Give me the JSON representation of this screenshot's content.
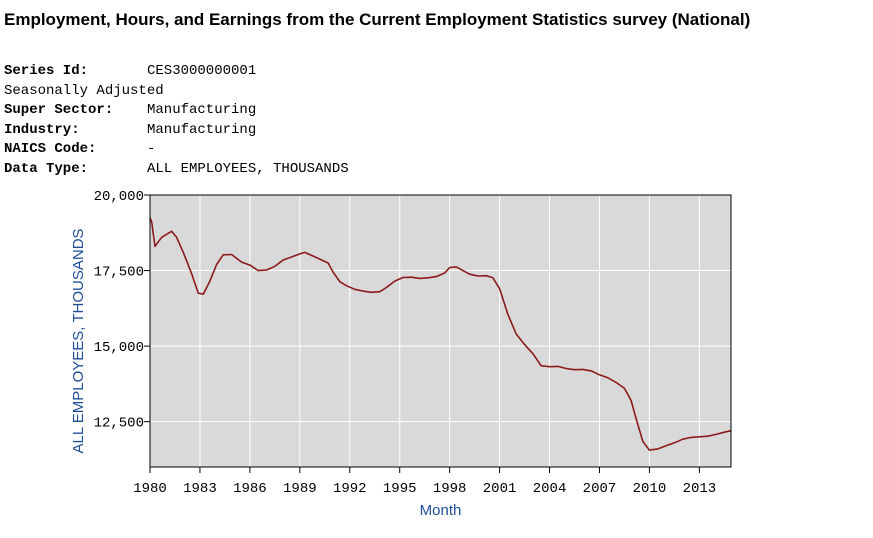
{
  "title": "Employment, Hours, and Earnings from the Current Employment Statistics survey (National)",
  "series_info": [
    {
      "label": "Series Id:",
      "value": "CES3000000001"
    },
    {
      "label": "Seasonally Adjusted",
      "value": ""
    },
    {
      "label": "Super Sector:",
      "value": "Manufacturing"
    },
    {
      "label": "Industry:",
      "value": "Manufacturing"
    },
    {
      "label": "NAICS Code:",
      "value": "-"
    },
    {
      "label": "Data Type:",
      "value": "ALL EMPLOYEES, THOUSANDS"
    }
  ],
  "chart_data": {
    "type": "line",
    "xlabel": "Month",
    "ylabel": "ALL EMPLOYEES, THOUSANDS",
    "xlim": [
      1980,
      2014.9
    ],
    "ylim": [
      11000,
      20000
    ],
    "x_ticks": [
      1980,
      1983,
      1986,
      1989,
      1992,
      1995,
      1998,
      2001,
      2004,
      2007,
      2010,
      2013
    ],
    "y_ticks": [
      12500,
      15000,
      17500,
      20000
    ],
    "y_tick_labels": [
      "12,500",
      "15,000",
      "17,500",
      "20,000"
    ],
    "grid": true,
    "plot_background": "#d9d9d9",
    "line_color": "#8b1a1a",
    "series": [
      {
        "x": [
          1980.0,
          1980.1,
          1980.3,
          1980.5,
          1980.7,
          1981.0,
          1981.3,
          1981.6,
          1982.0,
          1982.5,
          1982.9,
          1983.2,
          1983.6,
          1984.0,
          1984.4,
          1984.9,
          1985.5,
          1986.0,
          1986.5,
          1987.0,
          1987.5,
          1988.0,
          1988.5,
          1989.0,
          1989.3,
          1989.7,
          1990.2,
          1990.7,
          1991.0,
          1991.4,
          1991.8,
          1992.3,
          1992.8,
          1993.3,
          1993.8,
          1994.2,
          1994.7,
          1995.2,
          1995.7,
          1996.2,
          1996.7,
          1997.2,
          1997.7,
          1998.0,
          1998.4,
          1998.8,
          1999.2,
          1999.7,
          2000.2,
          2000.6,
          2001.0,
          2001.5,
          2002.0,
          2002.5,
          2003.0,
          2003.5,
          2004.0,
          2004.5,
          2005.0,
          2005.5,
          2006.0,
          2006.5,
          2007.0,
          2007.5,
          2008.0,
          2008.5,
          2008.9,
          2009.2,
          2009.6,
          2010.0,
          2010.5,
          2011.0,
          2011.5,
          2012.0,
          2012.5,
          2013.0,
          2013.5,
          2014.0,
          2014.5,
          2014.9
        ],
        "y": [
          19250,
          19100,
          18300,
          18450,
          18600,
          18700,
          18800,
          18600,
          18100,
          17400,
          16750,
          16720,
          17150,
          17700,
          18020,
          18030,
          17780,
          17680,
          17500,
          17520,
          17640,
          17850,
          17950,
          18050,
          18100,
          18000,
          17880,
          17750,
          17450,
          17130,
          17000,
          16880,
          16820,
          16780,
          16800,
          16940,
          17150,
          17270,
          17280,
          17240,
          17260,
          17300,
          17420,
          17600,
          17620,
          17500,
          17380,
          17320,
          17330,
          17260,
          16900,
          16050,
          15400,
          15050,
          14750,
          14350,
          14320,
          14330,
          14260,
          14220,
          14230,
          14180,
          14050,
          13950,
          13800,
          13600,
          13200,
          12600,
          11850,
          11560,
          11600,
          11700,
          11800,
          11920,
          11980,
          12000,
          12020,
          12080,
          12150,
          12200
        ]
      }
    ]
  }
}
